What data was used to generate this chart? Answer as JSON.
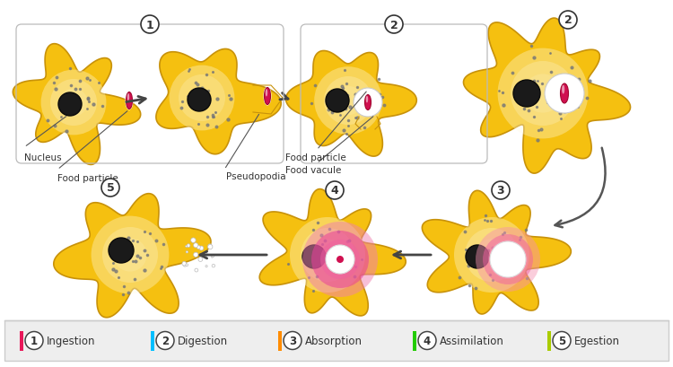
{
  "bg_color": "#ffffff",
  "cell_color": "#F5C010",
  "cell_edge": "#C8920A",
  "cell_inner": "#FBE96A",
  "nucleus_color": "#222222",
  "food_color": "#E0185A",
  "dot_color": "#888888",
  "legend_bg": "#eeeeee",
  "legend_border": "#cccccc",
  "legend_colors": [
    "#E8185A",
    "#00BFFF",
    "#FF8C00",
    "#22CC00",
    "#AACC00"
  ],
  "legend_labels": [
    "Ingestion",
    "Digestion",
    "Absorption",
    "Assimilation",
    "Egestion"
  ],
  "legend_numbers": [
    "1",
    "2",
    "3",
    "4",
    "5"
  ],
  "labels": {
    "nucleus": "Nucleus",
    "food_particle_1": "Food particle",
    "pseudopodia": "Pseudopodia",
    "food_particle_2": "Food particle",
    "food_vacuole": "Food vacule"
  }
}
